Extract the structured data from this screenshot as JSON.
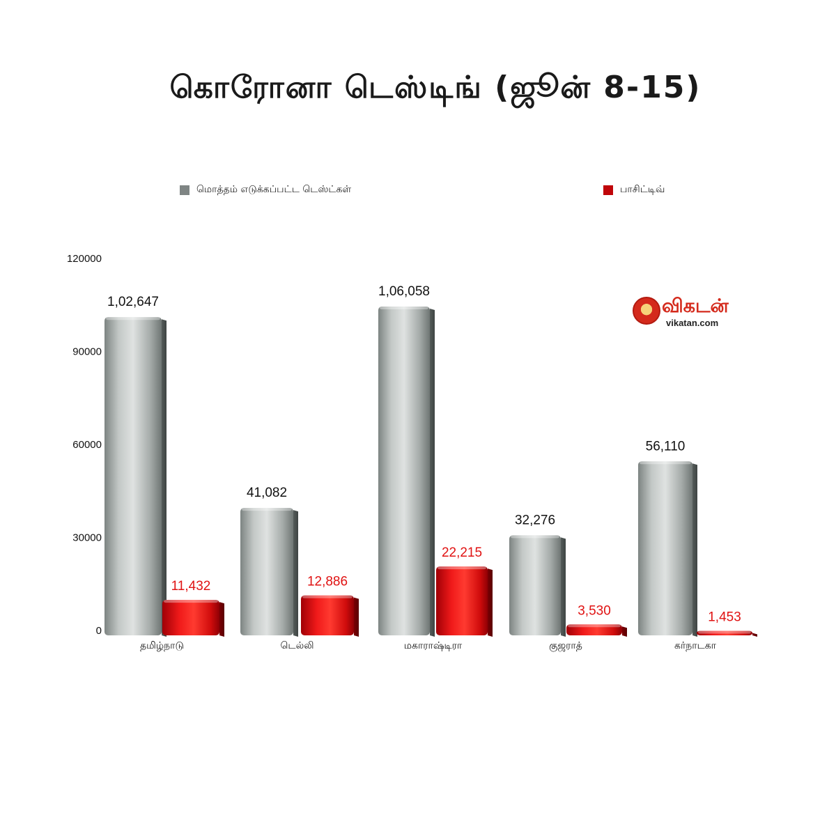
{
  "title": "கொரோனா டெஸ்டிங் (ஜூன் 8-15)",
  "legend": [
    {
      "label": "மொத்தம் எடுக்கப்பட்ட டெஸ்ட்கள்",
      "color": "#7f8584"
    },
    {
      "label": "பாசிட்டிவ்",
      "color": "#c0050a"
    }
  ],
  "logo": {
    "word": "விகடன்",
    "url": "vikatan.com"
  },
  "colors": {
    "total_bar": "#a8aeac",
    "positive_bar": "#e01212",
    "total_label": "#111111",
    "positive_label": "#e01212"
  },
  "chart_data": {
    "type": "bar",
    "title": "கொரோனா டெஸ்டிங் (ஜூன் 8-15)",
    "categories": [
      "தமிழ்நாடு",
      "டெல்லி",
      "மகாராஷ்டிரா",
      "குஜராத்",
      "கர்நாடகா"
    ],
    "series": [
      {
        "name": "மொத்தம் எடுக்கப்பட்ட டெஸ்ட்கள்",
        "values": [
          102647,
          41082,
          106058,
          32276,
          56110
        ],
        "labels": [
          "1,02,647",
          "41,082",
          "1,06,058",
          "32,276",
          "56,110"
        ]
      },
      {
        "name": "பாசிட்டிவ்",
        "values": [
          11432,
          12886,
          22215,
          3530,
          1453
        ],
        "labels": [
          "11,432",
          "12,886",
          "22,215",
          "3,530",
          "1,453"
        ]
      }
    ],
    "yticks": [
      "0",
      "30000",
      "60000",
      "90000",
      "120000"
    ],
    "ylim": [
      0,
      120000
    ],
    "grid": false,
    "legend_position": "top"
  }
}
